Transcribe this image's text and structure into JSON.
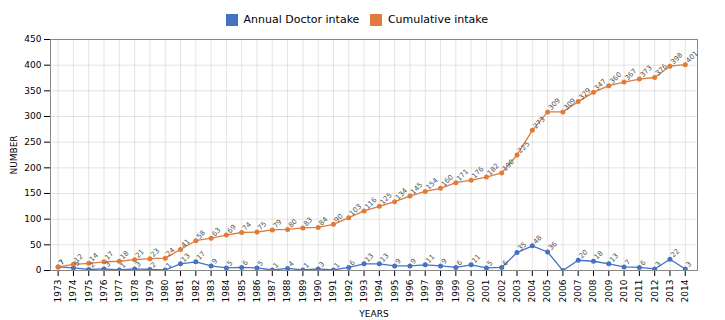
{
  "chart_data": {
    "type": "line",
    "x": [
      1973,
      1974,
      1975,
      1976,
      1977,
      1978,
      1979,
      1980,
      1981,
      1982,
      1983,
      1984,
      1985,
      1986,
      1987,
      1988,
      1989,
      1990,
      1991,
      1992,
      1993,
      1994,
      1995,
      1996,
      1997,
      1998,
      1999,
      2000,
      2001,
      2002,
      2003,
      2004,
      2005,
      2006,
      2007,
      2008,
      2009,
      2010,
      2011,
      2012,
      2013,
      2014
    ],
    "series": [
      {
        "name": "Annual Doctor intake",
        "color": "#4472c4",
        "marker": "circle",
        "values": [
          7,
          5,
          2,
          3,
          1,
          3,
          2,
          1,
          13,
          17,
          9,
          5,
          6,
          5,
          1,
          4,
          1,
          3,
          1,
          6,
          13,
          13,
          9,
          9,
          11,
          9,
          6,
          11,
          5,
          6,
          35,
          48,
          36,
          0,
          20,
          18,
          13,
          7,
          6,
          3,
          22,
          3
        ],
        "value_labels": [
          "7",
          "5",
          "2",
          "3",
          "1",
          "3",
          "2",
          "1",
          "13",
          "17",
          "9",
          "5",
          "6",
          "5",
          "1",
          "4",
          "1",
          "3",
          "1",
          "6",
          "13",
          "13",
          "9",
          "9",
          "11",
          "9",
          "6",
          "11",
          "5",
          "6",
          "35",
          "48",
          "36",
          null,
          "20",
          "18",
          "13",
          "7",
          "6",
          "3",
          "22",
          "3"
        ]
      },
      {
        "name": "Cumulative intake",
        "color": "#e07b39",
        "marker": "circle",
        "values": [
          7,
          12,
          14,
          17,
          18,
          21,
          23,
          24,
          41,
          58,
          63,
          69,
          74,
          75,
          79,
          80,
          83,
          84,
          90,
          103,
          116,
          125,
          134,
          145,
          154,
          160,
          171,
          176,
          182,
          190,
          225,
          273,
          309,
          309,
          329,
          347,
          360,
          367,
          373,
          376,
          398,
          401
        ]
      }
    ],
    "xlabel": "YEARS",
    "ylabel": "NUMBER",
    "xlim": [
      1972.5,
      2014.8
    ],
    "xticks": [
      1973,
      1974,
      1975,
      1976,
      1977,
      1978,
      1979,
      1980,
      1981,
      1982,
      1983,
      1984,
      1985,
      1986,
      1987,
      1988,
      1989,
      1990,
      1991,
      1992,
      1993,
      1994,
      1995,
      1996,
      1997,
      1998,
      1999,
      2000,
      2001,
      2002,
      2003,
      2004,
      2005,
      2006,
      2007,
      2008,
      2009,
      2010,
      2011,
      2012,
      2013,
      2014
    ],
    "ylim": [
      0,
      450
    ],
    "yticks": [
      0,
      50,
      100,
      150,
      200,
      250,
      300,
      350,
      400,
      450
    ],
    "grid": true,
    "legend": "top",
    "data_labels": true
  }
}
